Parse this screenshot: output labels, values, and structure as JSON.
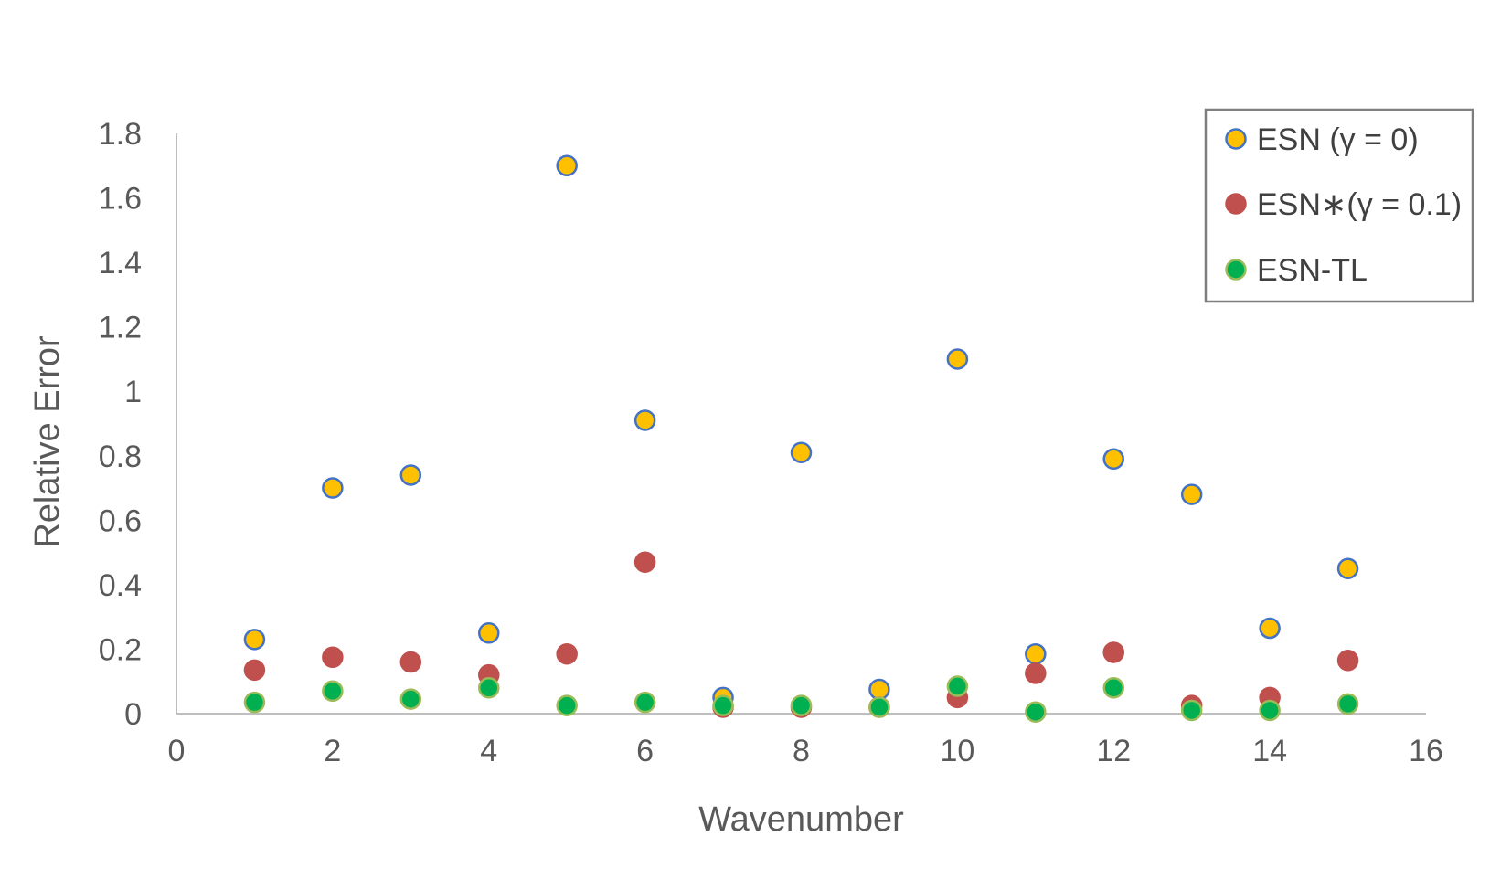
{
  "chart_data": {
    "type": "scatter",
    "title": "",
    "xlabel": "Wavenumber",
    "ylabel": "Relative Error",
    "xlim": [
      0,
      16
    ],
    "ylim": [
      0,
      1.8
    ],
    "xticks": [
      0,
      2,
      4,
      6,
      8,
      10,
      12,
      14,
      16
    ],
    "yticks": [
      0,
      0.2,
      0.4,
      0.6,
      0.8,
      1,
      1.2,
      1.4,
      1.6,
      1.8
    ],
    "xtick_labels": [
      "0",
      "2",
      "4",
      "6",
      "8",
      "10",
      "12",
      "14",
      "16"
    ],
    "ytick_labels": [
      "0",
      "0.2",
      "0.4",
      "0.6",
      "0.8",
      "1",
      "1.2",
      "1.4",
      "1.6",
      "1.8"
    ],
    "grid": false,
    "legend_position": "top-right",
    "series": [
      {
        "name": "ESN (γ = 0)",
        "fill": "#FFC000",
        "stroke": "#4472C4",
        "x": [
          1,
          2,
          3,
          4,
          5,
          6,
          7,
          8,
          9,
          10,
          11,
          12,
          13,
          14,
          15
        ],
        "y": [
          0.23,
          0.7,
          0.74,
          0.25,
          1.7,
          0.91,
          0.05,
          0.81,
          0.075,
          1.1,
          0.185,
          0.79,
          0.68,
          0.265,
          0.45
        ]
      },
      {
        "name": "ESN∗(γ = 0.1)",
        "fill": "#C0504D",
        "stroke": "#C0504D",
        "x": [
          1,
          2,
          3,
          4,
          5,
          6,
          7,
          8,
          9,
          10,
          11,
          12,
          13,
          14,
          15
        ],
        "y": [
          0.135,
          0.175,
          0.16,
          0.12,
          0.185,
          0.47,
          0.02,
          0.02,
          0.02,
          0.05,
          0.125,
          0.19,
          0.025,
          0.05,
          0.165
        ]
      },
      {
        "name": "ESN-TL",
        "fill": "#00B050",
        "stroke": "#9BBB59",
        "x": [
          1,
          2,
          3,
          4,
          5,
          6,
          7,
          8,
          9,
          10,
          11,
          12,
          13,
          14,
          15
        ],
        "y": [
          0.035,
          0.07,
          0.045,
          0.08,
          0.025,
          0.035,
          0.025,
          0.025,
          0.02,
          0.085,
          0.005,
          0.08,
          0.01,
          0.01,
          0.03
        ]
      }
    ]
  },
  "colors": {
    "axis": "#BFBFBF",
    "legend_border": "#7F7F7F",
    "text": "#595959"
  }
}
